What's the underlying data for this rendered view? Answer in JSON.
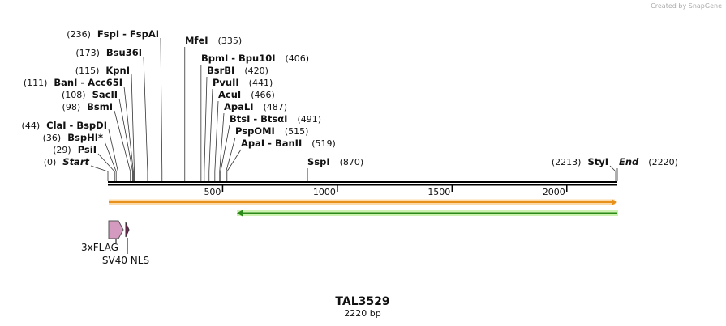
{
  "watermark": "Created by SnapGene",
  "sites": [
    {
      "name": "FspI - FspAI",
      "position": 236,
      "position_label": "(236)"
    },
    {
      "name": "MfeI",
      "position": 335,
      "position_label": "(335)"
    },
    {
      "name": "Bsu36I",
      "position": 173,
      "position_label": "(173)"
    },
    {
      "name": "BpmI - Bpu10I",
      "position": 406,
      "position_label": "(406)"
    },
    {
      "name": "KpnI",
      "position": 115,
      "position_label": "(115)"
    },
    {
      "name": "BsrBI",
      "position": 420,
      "position_label": "(420)"
    },
    {
      "name": "BanI - Acc65I",
      "position": 111,
      "position_label": "(111)"
    },
    {
      "name": "PvuII",
      "position": 441,
      "position_label": "(441)"
    },
    {
      "name": "SacII",
      "position": 108,
      "position_label": "(108)"
    },
    {
      "name": "AcuI",
      "position": 466,
      "position_label": "(466)"
    },
    {
      "name": "BsmI",
      "position": 98,
      "position_label": "(98)"
    },
    {
      "name": "ApaLI",
      "position": 487,
      "position_label": "(487)"
    },
    {
      "name": "BtsI - BtsαI",
      "position": 491,
      "position_label": "(491)"
    },
    {
      "name": "ClaI - BspDI",
      "position": 44,
      "position_label": "(44)"
    },
    {
      "name": "PspOMI",
      "position": 515,
      "position_label": "(515)"
    },
    {
      "name": "BspHI*",
      "position": 36,
      "position_label": "(36)"
    },
    {
      "name": "ApaI - BanII",
      "position": 519,
      "position_label": "(519)"
    },
    {
      "name": "PsiI",
      "position": 29,
      "position_label": "(29)"
    },
    {
      "name": "Start",
      "position": 0,
      "position_label": "(0)"
    },
    {
      "name": "SspI",
      "position": 870,
      "position_label": "(870)"
    },
    {
      "name": "StyI",
      "position": 2213,
      "position_label": "(2213)"
    },
    {
      "name": "End",
      "position": 2220,
      "position_label": "(2220)"
    }
  ],
  "ticks": [
    500,
    1000,
    1500,
    2000
  ],
  "features": [
    {
      "label": "3xFLAG"
    },
    {
      "label": "SV40 NLS"
    }
  ],
  "title": "TAL3529",
  "length_label": "2220 bp"
}
